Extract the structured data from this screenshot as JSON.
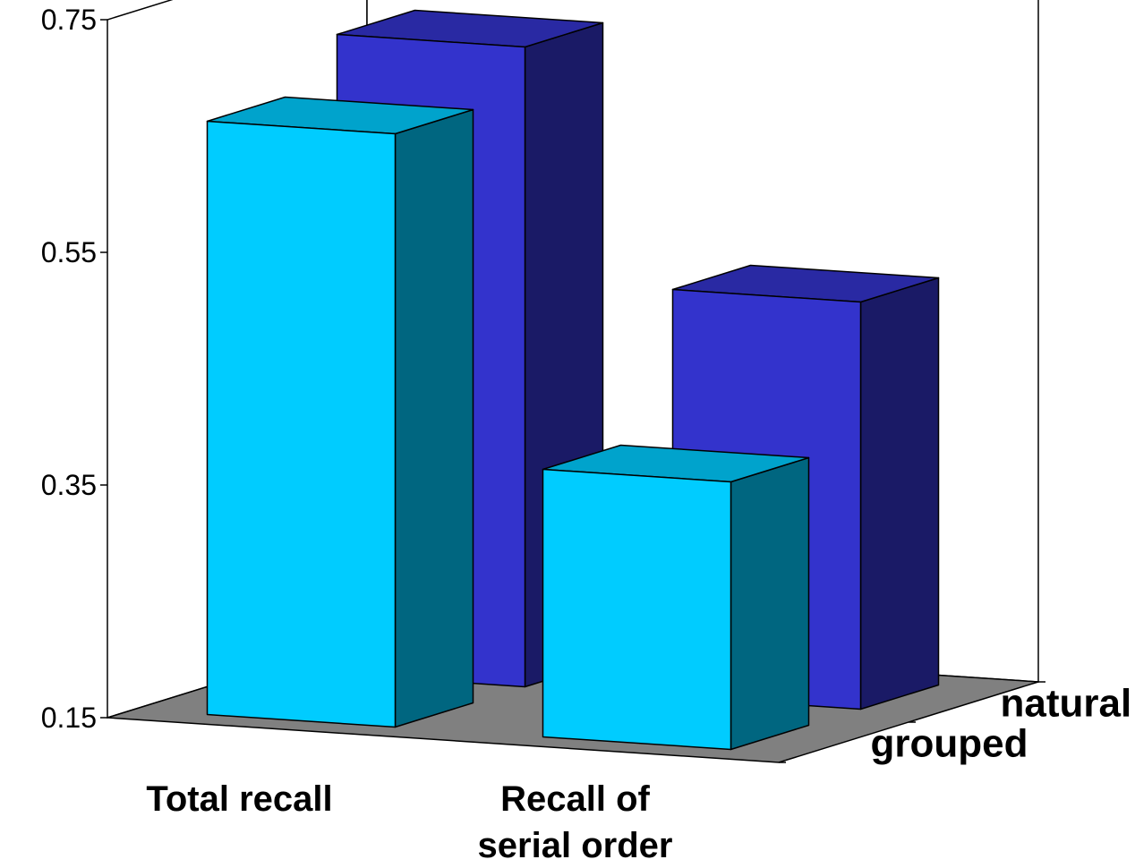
{
  "chart_data": {
    "type": "bar",
    "subtype": "3d-clustered-depth",
    "title": "",
    "xlabel": "",
    "ylabel": "",
    "ylim": [
      0.15,
      0.75
    ],
    "yticks": [
      "0.15",
      "0.35",
      "0.55",
      "0.75"
    ],
    "grid": false,
    "categories": [
      {
        "lines": [
          "Total recall"
        ]
      },
      {
        "lines": [
          "Recall of",
          "serial order"
        ]
      }
    ],
    "series": [
      {
        "name": "grouped",
        "values": [
          0.66,
          0.38
        ],
        "colors": {
          "front": "#00CCFF",
          "side": "#006680",
          "top": "#00A3CC"
        }
      },
      {
        "name": "natural",
        "values": [
          0.7,
          0.5
        ],
        "colors": {
          "front": "#3333CC",
          "side": "#1A1A66",
          "top": "#2929A3"
        }
      }
    ],
    "floor_color": "#808080"
  }
}
